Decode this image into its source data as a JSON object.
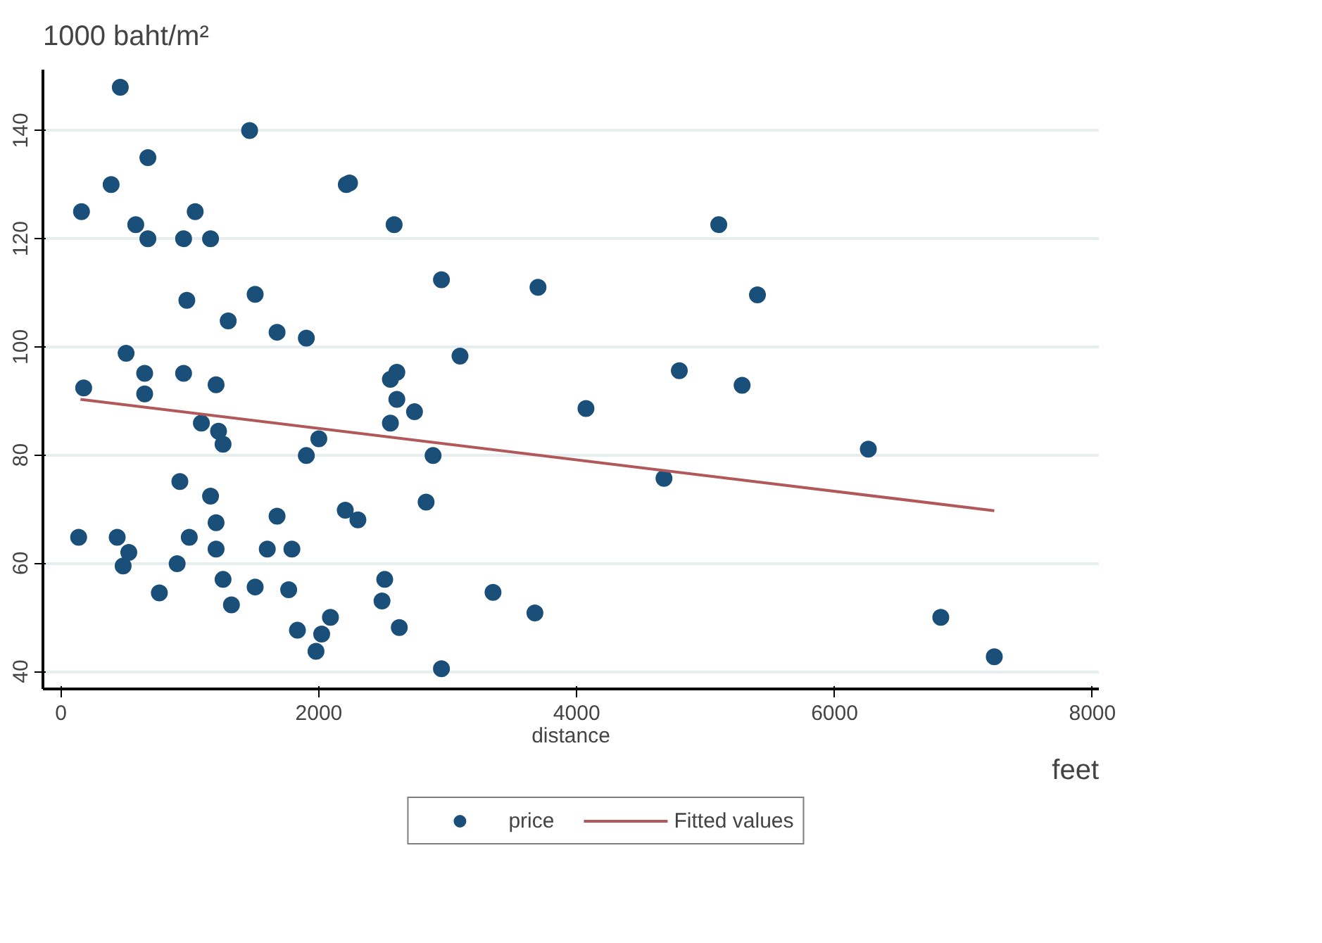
{
  "chart_data": {
    "type": "scatter",
    "xlabel": "distance",
    "ylabel": "1000 baht/m²",
    "annotations": [
      "feet"
    ],
    "xlim": [
      -140,
      8050
    ],
    "ylim": [
      36.75,
      151.25
    ],
    "xticks": [
      0,
      2000,
      4000,
      6000,
      8000
    ],
    "yticks": [
      40,
      60,
      80,
      100,
      120,
      140
    ],
    "grid": "y",
    "legend": "bottom",
    "marker": "circle",
    "series": [
      {
        "name": "price",
        "color": "#1a4f7a",
        "x": [
          460,
          1463,
          674,
          389,
          159,
          1041,
          580,
          674,
          951,
          1160,
          2213,
          2238,
          2584,
          2951,
          976,
          1506,
          1297,
          1676,
          1903,
          505,
          649,
          951,
          176,
          649,
          1203,
          2555,
          2605,
          2605,
          2742,
          2555,
          1089,
          1222,
          1257,
          1903,
          2000,
          2886,
          922,
          1160,
          2832,
          2205,
          2303,
          1676,
          1203,
          137,
          436,
          995,
          526,
          482,
          1203,
          1600,
          1791,
          901,
          763,
          1257,
          1506,
          1766,
          1322,
          2511,
          2490,
          1834,
          2090,
          2022,
          1978,
          2624,
          2951,
          5102,
          3700,
          5402,
          3095,
          4796,
          5283,
          4072,
          4677,
          6262,
          3351,
          3676,
          6824,
          7239
        ],
        "values": [
          148,
          140,
          135,
          130,
          125,
          125,
          122.6,
          120,
          120,
          120,
          130,
          130.3,
          122.6,
          112.4,
          108.6,
          109.7,
          104.8,
          102.7,
          101.6,
          98.8,
          95.1,
          95.1,
          92.4,
          91.3,
          93,
          94,
          95.3,
          90.3,
          88,
          85.9,
          85.9,
          84.4,
          82,
          79.9,
          83,
          79.9,
          75.1,
          72.4,
          71.3,
          69.8,
          68,
          68.7,
          67.5,
          64.8,
          64.8,
          64.8,
          62,
          59.5,
          62.6,
          62.6,
          62.6,
          59.9,
          54.5,
          57,
          55.6,
          55.1,
          52.3,
          57,
          53,
          47.6,
          50,
          46.9,
          43.7,
          48.1,
          40.5,
          122.6,
          111,
          109.6,
          98.3,
          95.6,
          92.9,
          88.6,
          75.7,
          81.1,
          54.6,
          50.8,
          50,
          42.7
        ]
      },
      {
        "name": "Fitted values",
        "type": "line",
        "color": "#b0585a",
        "line_style": "solid",
        "marker": "none",
        "x": [
          151,
          7239
        ],
        "values": [
          90.3,
          69.7
        ]
      }
    ]
  }
}
